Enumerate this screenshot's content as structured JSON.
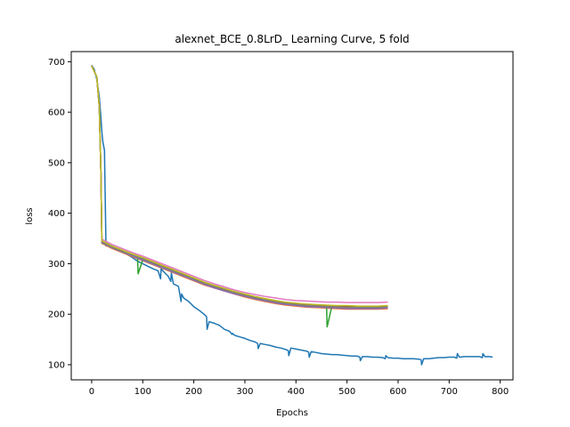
{
  "chart_data": {
    "type": "line",
    "title": "alexnet_BCE_0.8LrD_ Learning Curve, 5 fold",
    "xlabel": "Epochs",
    "ylabel": "loss",
    "xlim": [
      -40,
      825
    ],
    "ylim": [
      70,
      720
    ],
    "xticks": [
      0,
      100,
      200,
      300,
      400,
      500,
      600,
      700,
      800
    ],
    "yticks": [
      100,
      200,
      300,
      400,
      500,
      600,
      700
    ],
    "grid": false,
    "legend": "none",
    "series": [
      {
        "color": "#1f77b4",
        "x": [
          0,
          5,
          10,
          15,
          18,
          20,
          22,
          25,
          28,
          30,
          40,
          50,
          60,
          70,
          80,
          90,
          100,
          110,
          120,
          130,
          135,
          136,
          140,
          150,
          155,
          156,
          160,
          170,
          175,
          176,
          180,
          190,
          200,
          210,
          220,
          225,
          226,
          230,
          240,
          250,
          260,
          270,
          275,
          276,
          280,
          290,
          300,
          310,
          320,
          325,
          326,
          330,
          340,
          350,
          360,
          370,
          380,
          385,
          386,
          390,
          400,
          410,
          420,
          425,
          426,
          430,
          440,
          450,
          460,
          470,
          480,
          490,
          500,
          510,
          520,
          525,
          526,
          530,
          540,
          550,
          560,
          570,
          575,
          576,
          580,
          590,
          600,
          610,
          620,
          630,
          640,
          645,
          646,
          650,
          660,
          670,
          680,
          690,
          700,
          710,
          715,
          716,
          720,
          730,
          740,
          750,
          760,
          765,
          766,
          770,
          780,
          785
        ],
        "y": [
          693,
          685,
          665,
          630,
          590,
          560,
          540,
          525,
          335,
          340,
          335,
          330,
          325,
          318,
          312,
          305,
          300,
          295,
          290,
          286,
          270,
          290,
          285,
          275,
          265,
          282,
          260,
          255,
          225,
          240,
          232,
          225,
          215,
          208,
          200,
          195,
          170,
          185,
          182,
          178,
          170,
          166,
          160,
          162,
          158,
          155,
          152,
          148,
          145,
          142,
          132,
          142,
          140,
          138,
          135,
          133,
          130,
          128,
          118,
          133,
          131,
          129,
          127,
          125,
          115,
          126,
          124,
          122,
          121,
          120,
          120,
          119,
          118,
          117,
          117,
          115,
          108,
          116,
          116,
          115,
          115,
          114,
          112,
          118,
          114,
          113,
          113,
          112,
          112,
          112,
          111,
          110,
          100,
          112,
          112,
          113,
          114,
          114,
          115,
          115,
          113,
          122,
          115,
          116,
          116,
          116,
          116,
          114,
          122,
          116,
          116,
          115
        ]
      },
      {
        "color": "#ff7f0e",
        "x": [
          0,
          10,
          15,
          18,
          20,
          25,
          40,
          60,
          80,
          100,
          120,
          140,
          160,
          180,
          200,
          220,
          240,
          260,
          280,
          300,
          320,
          340,
          360,
          380,
          400,
          420,
          440,
          460,
          480,
          500,
          520,
          540,
          560,
          580
        ],
        "y": [
          692,
          670,
          610,
          480,
          340,
          338,
          330,
          322,
          314,
          306,
          298,
          290,
          282,
          274,
          266,
          258,
          252,
          246,
          240,
          234,
          229,
          225,
          221,
          218,
          216,
          214,
          213,
          212,
          211,
          210,
          210,
          210,
          210,
          211
        ]
      },
      {
        "color": "#2ca02c",
        "x": [
          0,
          10,
          15,
          18,
          20,
          25,
          40,
          60,
          80,
          90,
          91,
          100,
          120,
          140,
          160,
          180,
          200,
          220,
          240,
          260,
          280,
          300,
          320,
          340,
          360,
          380,
          400,
          420,
          440,
          460,
          461,
          470,
          480,
          500,
          520,
          540,
          560,
          580
        ],
        "y": [
          692,
          670,
          610,
          480,
          342,
          340,
          332,
          324,
          316,
          312,
          280,
          308,
          300,
          292,
          284,
          276,
          268,
          260,
          253,
          247,
          241,
          236,
          231,
          227,
          223,
          220,
          218,
          216,
          215,
          214,
          175,
          214,
          214,
          213,
          213,
          212,
          212,
          213
        ]
      },
      {
        "color": "#d62728",
        "x": [
          0,
          10,
          15,
          18,
          20,
          25,
          40,
          60,
          80,
          100,
          120,
          140,
          160,
          180,
          200,
          220,
          240,
          260,
          280,
          300,
          320,
          340,
          360,
          380,
          400,
          420,
          440,
          460,
          480,
          500,
          520,
          540,
          560,
          580
        ],
        "y": [
          692,
          670,
          612,
          482,
          343,
          341,
          333,
          325,
          318,
          310,
          302,
          294,
          286,
          278,
          270,
          262,
          255,
          249,
          243,
          238,
          233,
          229,
          225,
          222,
          220,
          218,
          217,
          216,
          215,
          214,
          214,
          214,
          214,
          215
        ]
      },
      {
        "color": "#9467bd",
        "x": [
          0,
          10,
          15,
          18,
          20,
          25,
          40,
          60,
          80,
          100,
          120,
          140,
          160,
          180,
          200,
          220,
          240,
          260,
          280,
          300,
          320,
          340,
          360,
          380,
          400,
          420,
          440,
          460,
          480,
          500,
          520,
          540,
          560,
          580
        ],
        "y": [
          692,
          670,
          612,
          482,
          341,
          339,
          331,
          323,
          315,
          307,
          299,
          291,
          283,
          275,
          267,
          259,
          252,
          246,
          240,
          235,
          230,
          226,
          222,
          219,
          217,
          215,
          214,
          213,
          212,
          211,
          211,
          211,
          211,
          212
        ]
      },
      {
        "color": "#8c564b",
        "x": [
          0,
          10,
          15,
          18,
          20,
          25,
          40,
          60,
          80,
          100,
          120,
          140,
          160,
          180,
          200,
          220,
          240,
          260,
          280,
          300,
          320,
          340,
          360,
          380,
          400,
          420,
          440,
          460,
          480,
          500,
          520,
          540,
          560,
          580
        ],
        "y": [
          692,
          670,
          611,
          481,
          344,
          342,
          334,
          326,
          318,
          311,
          303,
          295,
          287,
          279,
          271,
          263,
          256,
          250,
          244,
          239,
          234,
          230,
          226,
          223,
          221,
          219,
          218,
          217,
          216,
          216,
          215,
          215,
          215,
          216
        ]
      },
      {
        "color": "#e377c2",
        "x": [
          0,
          10,
          15,
          18,
          20,
          25,
          40,
          60,
          80,
          100,
          120,
          140,
          160,
          180,
          200,
          220,
          240,
          260,
          280,
          300,
          320,
          340,
          360,
          380,
          400,
          420,
          440,
          460,
          480,
          500,
          520,
          540,
          560,
          580
        ],
        "y": [
          692,
          670,
          612,
          482,
          348,
          346,
          338,
          330,
          322,
          315,
          307,
          299,
          291,
          283,
          275,
          267,
          260,
          254,
          248,
          243,
          239,
          235,
          232,
          229,
          227,
          226,
          225,
          224,
          224,
          223,
          223,
          223,
          223,
          224
        ]
      },
      {
        "color": "#7f7f7f",
        "x": [
          0,
          10,
          15,
          18,
          20,
          25,
          40,
          60,
          80,
          100,
          120,
          140,
          160,
          180,
          200,
          220,
          240,
          260,
          280,
          300,
          320,
          340,
          360,
          380,
          400,
          420,
          440,
          460,
          480,
          500,
          520,
          540,
          560,
          580
        ],
        "y": [
          692,
          670,
          611,
          481,
          342,
          340,
          332,
          324,
          317,
          309,
          301,
          293,
          285,
          277,
          269,
          261,
          254,
          248,
          242,
          237,
          232,
          228,
          224,
          221,
          219,
          217,
          216,
          215,
          214,
          213,
          213,
          213,
          213,
          214
        ]
      },
      {
        "color": "#bcbd22",
        "x": [
          0,
          10,
          15,
          18,
          20,
          25,
          40,
          60,
          80,
          100,
          120,
          140,
          160,
          180,
          200,
          220,
          240,
          260,
          280,
          300,
          320,
          340,
          360,
          380,
          400,
          420,
          440,
          460,
          480,
          500,
          520,
          540,
          560,
          580
        ],
        "y": [
          692,
          670,
          612,
          482,
          345,
          343,
          335,
          327,
          319,
          312,
          304,
          296,
          288,
          280,
          272,
          264,
          257,
          251,
          245,
          240,
          235,
          231,
          227,
          224,
          222,
          220,
          219,
          218,
          217,
          217,
          216,
          216,
          216,
          217
        ]
      }
    ]
  }
}
